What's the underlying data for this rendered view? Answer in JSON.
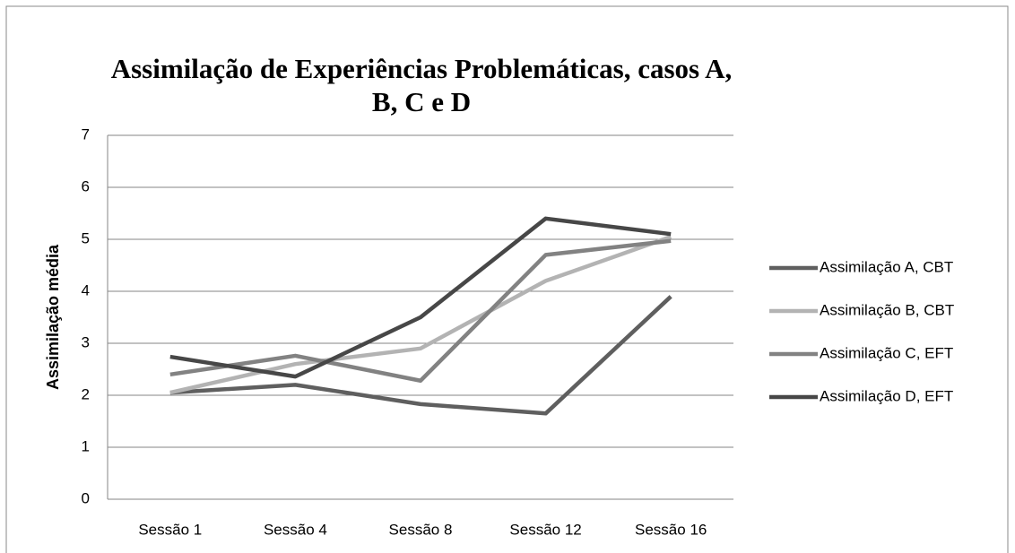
{
  "chart_data": {
    "type": "line",
    "title": "Assimilação de Experiências Problemáticas, casos A, B, C e D",
    "y_label": "Assimilação média",
    "categories": [
      "Sessão 1",
      "Sessão 4",
      "Sessão 8",
      "Sessão 12",
      "Sessão 16"
    ],
    "series": [
      {
        "name": "Assimilação A, CBT",
        "color": "#5f5f5f",
        "values": [
          2.05,
          2.2,
          1.83,
          1.65,
          3.9
        ]
      },
      {
        "name": "Assimilação B, CBT",
        "color": "#b3b3b3",
        "values": [
          2.05,
          2.6,
          2.9,
          4.2,
          5.05
        ]
      },
      {
        "name": "Assimilação C, EFT",
        "color": "#828282",
        "values": [
          2.4,
          2.76,
          2.28,
          4.7,
          4.97
        ]
      },
      {
        "name": "Assimilação D, EFT",
        "color": "#474747",
        "values": [
          2.74,
          2.36,
          3.5,
          5.4,
          5.1
        ]
      }
    ],
    "ylim": [
      0,
      7
    ],
    "yticks": [
      0,
      1,
      2,
      3,
      4,
      5,
      6,
      7
    ],
    "grid": true,
    "legend": "right"
  }
}
